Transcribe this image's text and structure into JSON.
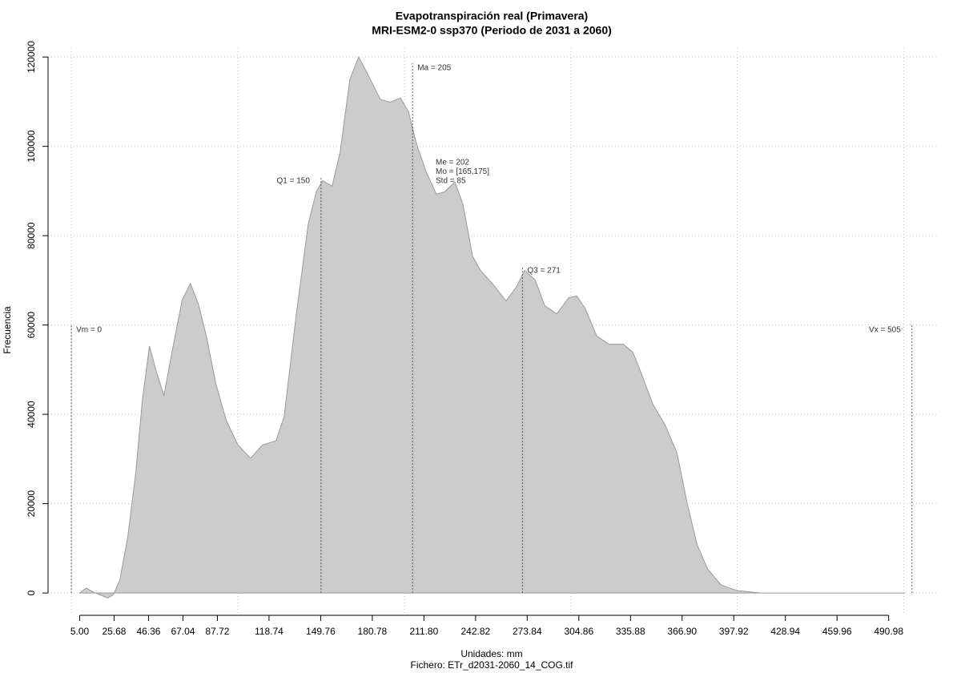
{
  "chart_data": {
    "type": "area",
    "title": "Evapotranspiración real (Primavera)",
    "subtitle": "MRI-ESM2-0 ssp370 (Periodo de 2031 a 2060)",
    "xlabel": "Unidades: mm",
    "caption": "Fichero: ETr_d2031-2060_14_COG.tif",
    "ylabel": "Frecuencia",
    "color": "#cccccc",
    "x": [
      5,
      8.9,
      12.2,
      17,
      21.9,
      25.2,
      29.1,
      33.9,
      38.7,
      42.6,
      46.9,
      50.8,
      55.6,
      60.4,
      66.6,
      71.5,
      76.3,
      81.1,
      86.9,
      93.1,
      99.9,
      107.6,
      114.8,
      123,
      127.8,
      135,
      142.3,
      147.1,
      150.9,
      156.7,
      161.5,
      167.3,
      172.6,
      178.4,
      185.6,
      191.4,
      197.7,
      202.5,
      207.3,
      213.1,
      219.3,
      224.2,
      230.4,
      235.2,
      241,
      245.8,
      253.1,
      261.2,
      267.5,
      272.3,
      278.6,
      284.4,
      291.6,
      298.8,
      303.6,
      308.5,
      315.7,
      322.9,
      331.6,
      337.3,
      342.1,
      349.4,
      356.6,
      363.8,
      370.1,
      375.9,
      382.1,
      390.3,
      400,
      414.4,
      501
    ],
    "values": [
      0,
      1100,
      400,
      -400,
      -1100,
      -400,
      2900,
      12600,
      26900,
      43100,
      55300,
      49900,
      44200,
      53900,
      65600,
      69300,
      64700,
      57500,
      46700,
      38600,
      33200,
      30200,
      33100,
      34100,
      39500,
      62000,
      82600,
      89800,
      92300,
      91100,
      98800,
      115000,
      120000,
      115900,
      110500,
      109900,
      110800,
      107800,
      100600,
      94300,
      89300,
      89800,
      92000,
      87100,
      75400,
      72200,
      69200,
      65400,
      68600,
      72200,
      70100,
      64300,
      62500,
      66100,
      66500,
      63800,
      57500,
      55700,
      55700,
      53900,
      49400,
      42200,
      37700,
      31400,
      19800,
      10800,
      5400,
      1800,
      500,
      0,
      0
    ],
    "xlim": [
      -14,
      520
    ],
    "ylim": [
      -5000,
      122000
    ],
    "xticks": [
      {
        "value": 5,
        "label": "5.00"
      },
      25.68,
      46.36,
      67.04,
      87.72,
      118.74,
      149.76,
      180.78,
      {
        "value": 211.8,
        "label": "211.80"
      },
      242.82,
      273.84,
      304.86,
      335.88,
      {
        "value": 366.9,
        "label": "366.90"
      },
      397.92,
      428.94,
      459.96,
      490.98
    ],
    "yticks": [
      0,
      20000,
      40000,
      60000,
      80000,
      100000,
      120000
    ],
    "xgrid": [
      0,
      100,
      200,
      300,
      400,
      500
    ],
    "grid": true,
    "markers": [
      {
        "label": "Vm = 0",
        "x": 0
      },
      {
        "label": "Q1 = 150",
        "x": 150
      },
      {
        "label": "Ma = 205",
        "x": 205
      },
      {
        "label": "Q3 = 271",
        "x": 271
      },
      {
        "label": "Vx = 505",
        "x": 505
      }
    ],
    "annotations": [
      "Me = 202",
      "Mo = [165,175]",
      "Std = 85"
    ]
  }
}
